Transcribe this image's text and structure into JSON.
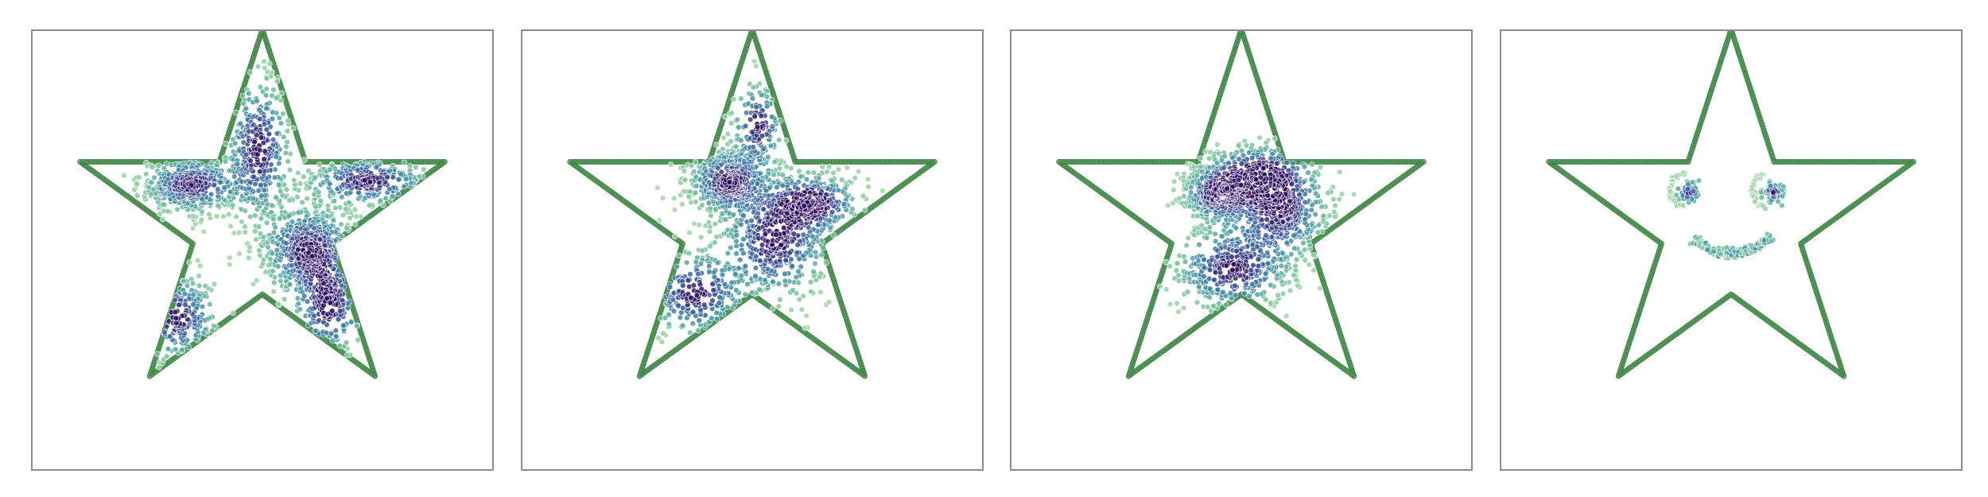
{
  "chart_data": [
    {
      "type": "scatter",
      "title": "",
      "xlabel": "",
      "ylabel": "",
      "grid": false,
      "axis_ticks": false,
      "boundary": {
        "shape": "five-point star",
        "vertices": [
          [
            0.0,
            1.0
          ],
          [
            0.2245,
            0.309
          ],
          [
            0.9511,
            0.309
          ],
          [
            0.3633,
            -0.118
          ],
          [
            0.5878,
            -0.809
          ],
          [
            0.0,
            -0.382
          ],
          [
            -0.5878,
            -0.809
          ],
          [
            -0.3633,
            -0.118
          ],
          [
            -0.9511,
            0.309
          ],
          [
            -0.2245,
            0.309
          ]
        ],
        "color": "#4e9a55"
      },
      "colormap": [
        "#2c0b5e",
        "#3b5c9f",
        "#3d8fa4",
        "#6fbf9a",
        "#a8d8a8"
      ],
      "clusters": [
        {
          "cx": -0.37,
          "cy": 0.19,
          "sx": 0.14,
          "sy": 0.08,
          "n": 420
        },
        {
          "cx": 0.24,
          "cy": -0.15,
          "sx": 0.13,
          "sy": 0.13,
          "n": 560
        },
        {
          "cx": -0.02,
          "cy": 0.38,
          "sx": 0.09,
          "sy": 0.2,
          "n": 330
        },
        {
          "cx": 0.55,
          "cy": 0.21,
          "sx": 0.17,
          "sy": 0.07,
          "n": 300
        },
        {
          "cx": -0.45,
          "cy": -0.5,
          "sx": 0.12,
          "sy": 0.12,
          "n": 170
        },
        {
          "cx": 0.35,
          "cy": -0.45,
          "sx": 0.1,
          "sy": 0.14,
          "n": 190
        }
      ]
    },
    {
      "type": "scatter",
      "title": "",
      "xlabel": "",
      "ylabel": "",
      "grid": false,
      "axis_ticks": false,
      "boundary": {
        "shape": "five-point star",
        "vertices": [
          [
            0.0,
            1.0
          ],
          [
            0.2245,
            0.309
          ],
          [
            0.9511,
            0.309
          ],
          [
            0.3633,
            -0.118
          ],
          [
            0.5878,
            -0.809
          ],
          [
            0.0,
            -0.382
          ],
          [
            -0.5878,
            -0.809
          ],
          [
            -0.3633,
            -0.118
          ],
          [
            -0.9511,
            0.309
          ],
          [
            -0.2245,
            0.309
          ]
        ],
        "color": "#4e9a55"
      },
      "colormap": [
        "#2c0b5e",
        "#3b5c9f",
        "#3d8fa4",
        "#6fbf9a",
        "#a8d8a8"
      ],
      "clusters": [
        {
          "cx": -0.13,
          "cy": 0.21,
          "sx": 0.11,
          "sy": 0.09,
          "n": 500
        },
        {
          "cx": 0.12,
          "cy": -0.1,
          "sx": 0.16,
          "sy": 0.17,
          "n": 520
        },
        {
          "cx": 0.32,
          "cy": 0.1,
          "sx": 0.13,
          "sy": 0.08,
          "n": 280
        },
        {
          "cx": -0.3,
          "cy": -0.38,
          "sx": 0.14,
          "sy": 0.12,
          "n": 220
        },
        {
          "cx": 0.03,
          "cy": 0.5,
          "sx": 0.07,
          "sy": 0.12,
          "n": 140
        }
      ]
    },
    {
      "type": "scatter",
      "title": "",
      "xlabel": "",
      "ylabel": "",
      "grid": false,
      "axis_ticks": false,
      "boundary": {
        "shape": "five-point star",
        "vertices": [
          [
            0.0,
            1.0
          ],
          [
            0.2245,
            0.309
          ],
          [
            0.9511,
            0.309
          ],
          [
            0.3633,
            -0.118
          ],
          [
            0.5878,
            -0.809
          ],
          [
            0.0,
            -0.382
          ],
          [
            -0.5878,
            -0.809
          ],
          [
            -0.3633,
            -0.118
          ],
          [
            -0.9511,
            0.309
          ],
          [
            -0.2245,
            0.309
          ]
        ],
        "color": "#4e9a55"
      },
      "colormap": [
        "#2c0b5e",
        "#3b5c9f",
        "#3d8fa4",
        "#6fbf9a",
        "#a8d8a8"
      ],
      "clusters": [
        {
          "cx": -0.12,
          "cy": 0.14,
          "sx": 0.1,
          "sy": 0.08,
          "n": 420
        },
        {
          "cx": 0.2,
          "cy": 0.06,
          "sx": 0.14,
          "sy": 0.14,
          "n": 520
        },
        {
          "cx": -0.05,
          "cy": -0.25,
          "sx": 0.16,
          "sy": 0.12,
          "n": 380
        },
        {
          "cx": 0.08,
          "cy": 0.25,
          "sx": 0.14,
          "sy": 0.08,
          "n": 200
        }
      ]
    },
    {
      "type": "scatter",
      "title": "",
      "xlabel": "",
      "ylabel": "",
      "grid": false,
      "axis_ticks": false,
      "boundary": {
        "shape": "five-point star",
        "vertices": [
          [
            0.0,
            1.0
          ],
          [
            0.2245,
            0.309
          ],
          [
            0.9511,
            0.309
          ],
          [
            0.3633,
            -0.118
          ],
          [
            0.5878,
            -0.809
          ],
          [
            0.0,
            -0.382
          ],
          [
            -0.5878,
            -0.809
          ],
          [
            -0.3633,
            -0.118
          ],
          [
            -0.9511,
            0.309
          ],
          [
            -0.2245,
            0.309
          ]
        ],
        "color": "#4e9a55"
      },
      "colormap": [
        "#2c0b5e",
        "#3b5c9f",
        "#3d8fa4",
        "#6fbf9a",
        "#a8d8a8"
      ],
      "face": {
        "eyes": [
          {
            "cx": -0.22,
            "cy": 0.15,
            "r": 0.055,
            "n": 110
          },
          {
            "cx": 0.22,
            "cy": 0.15,
            "r": 0.055,
            "n": 110
          }
        ],
        "eye_arcs": [
          {
            "cx": -0.23,
            "cy": 0.16,
            "r": 0.09,
            "from_deg": 100,
            "to_deg": 255,
            "n": 40
          },
          {
            "cx": 0.2,
            "cy": 0.16,
            "r": 0.09,
            "from_deg": 110,
            "to_deg": 260,
            "n": 40
          }
        ],
        "mouth": {
          "cx": 0.0,
          "cy": 0.1,
          "r": 0.27,
          "from_deg": 225,
          "to_deg": 320,
          "n": 150
        }
      }
    }
  ]
}
